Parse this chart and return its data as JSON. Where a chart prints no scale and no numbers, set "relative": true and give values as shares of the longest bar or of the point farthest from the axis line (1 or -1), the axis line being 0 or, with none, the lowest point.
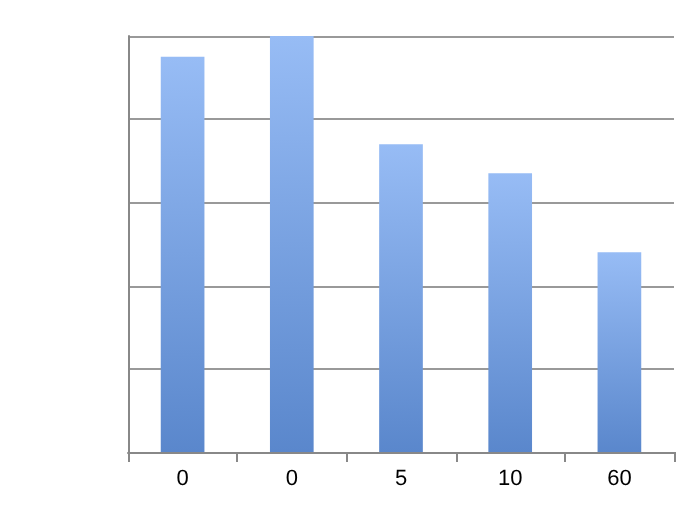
{
  "chart_data": {
    "type": "bar",
    "relative": true,
    "categories": [
      "0",
      "0",
      "5",
      "10",
      "60"
    ],
    "values": [
      0.95,
      1,
      0.74,
      0.67,
      0.48
    ],
    "color": "#6a9ff0",
    "grid": "y"
  }
}
